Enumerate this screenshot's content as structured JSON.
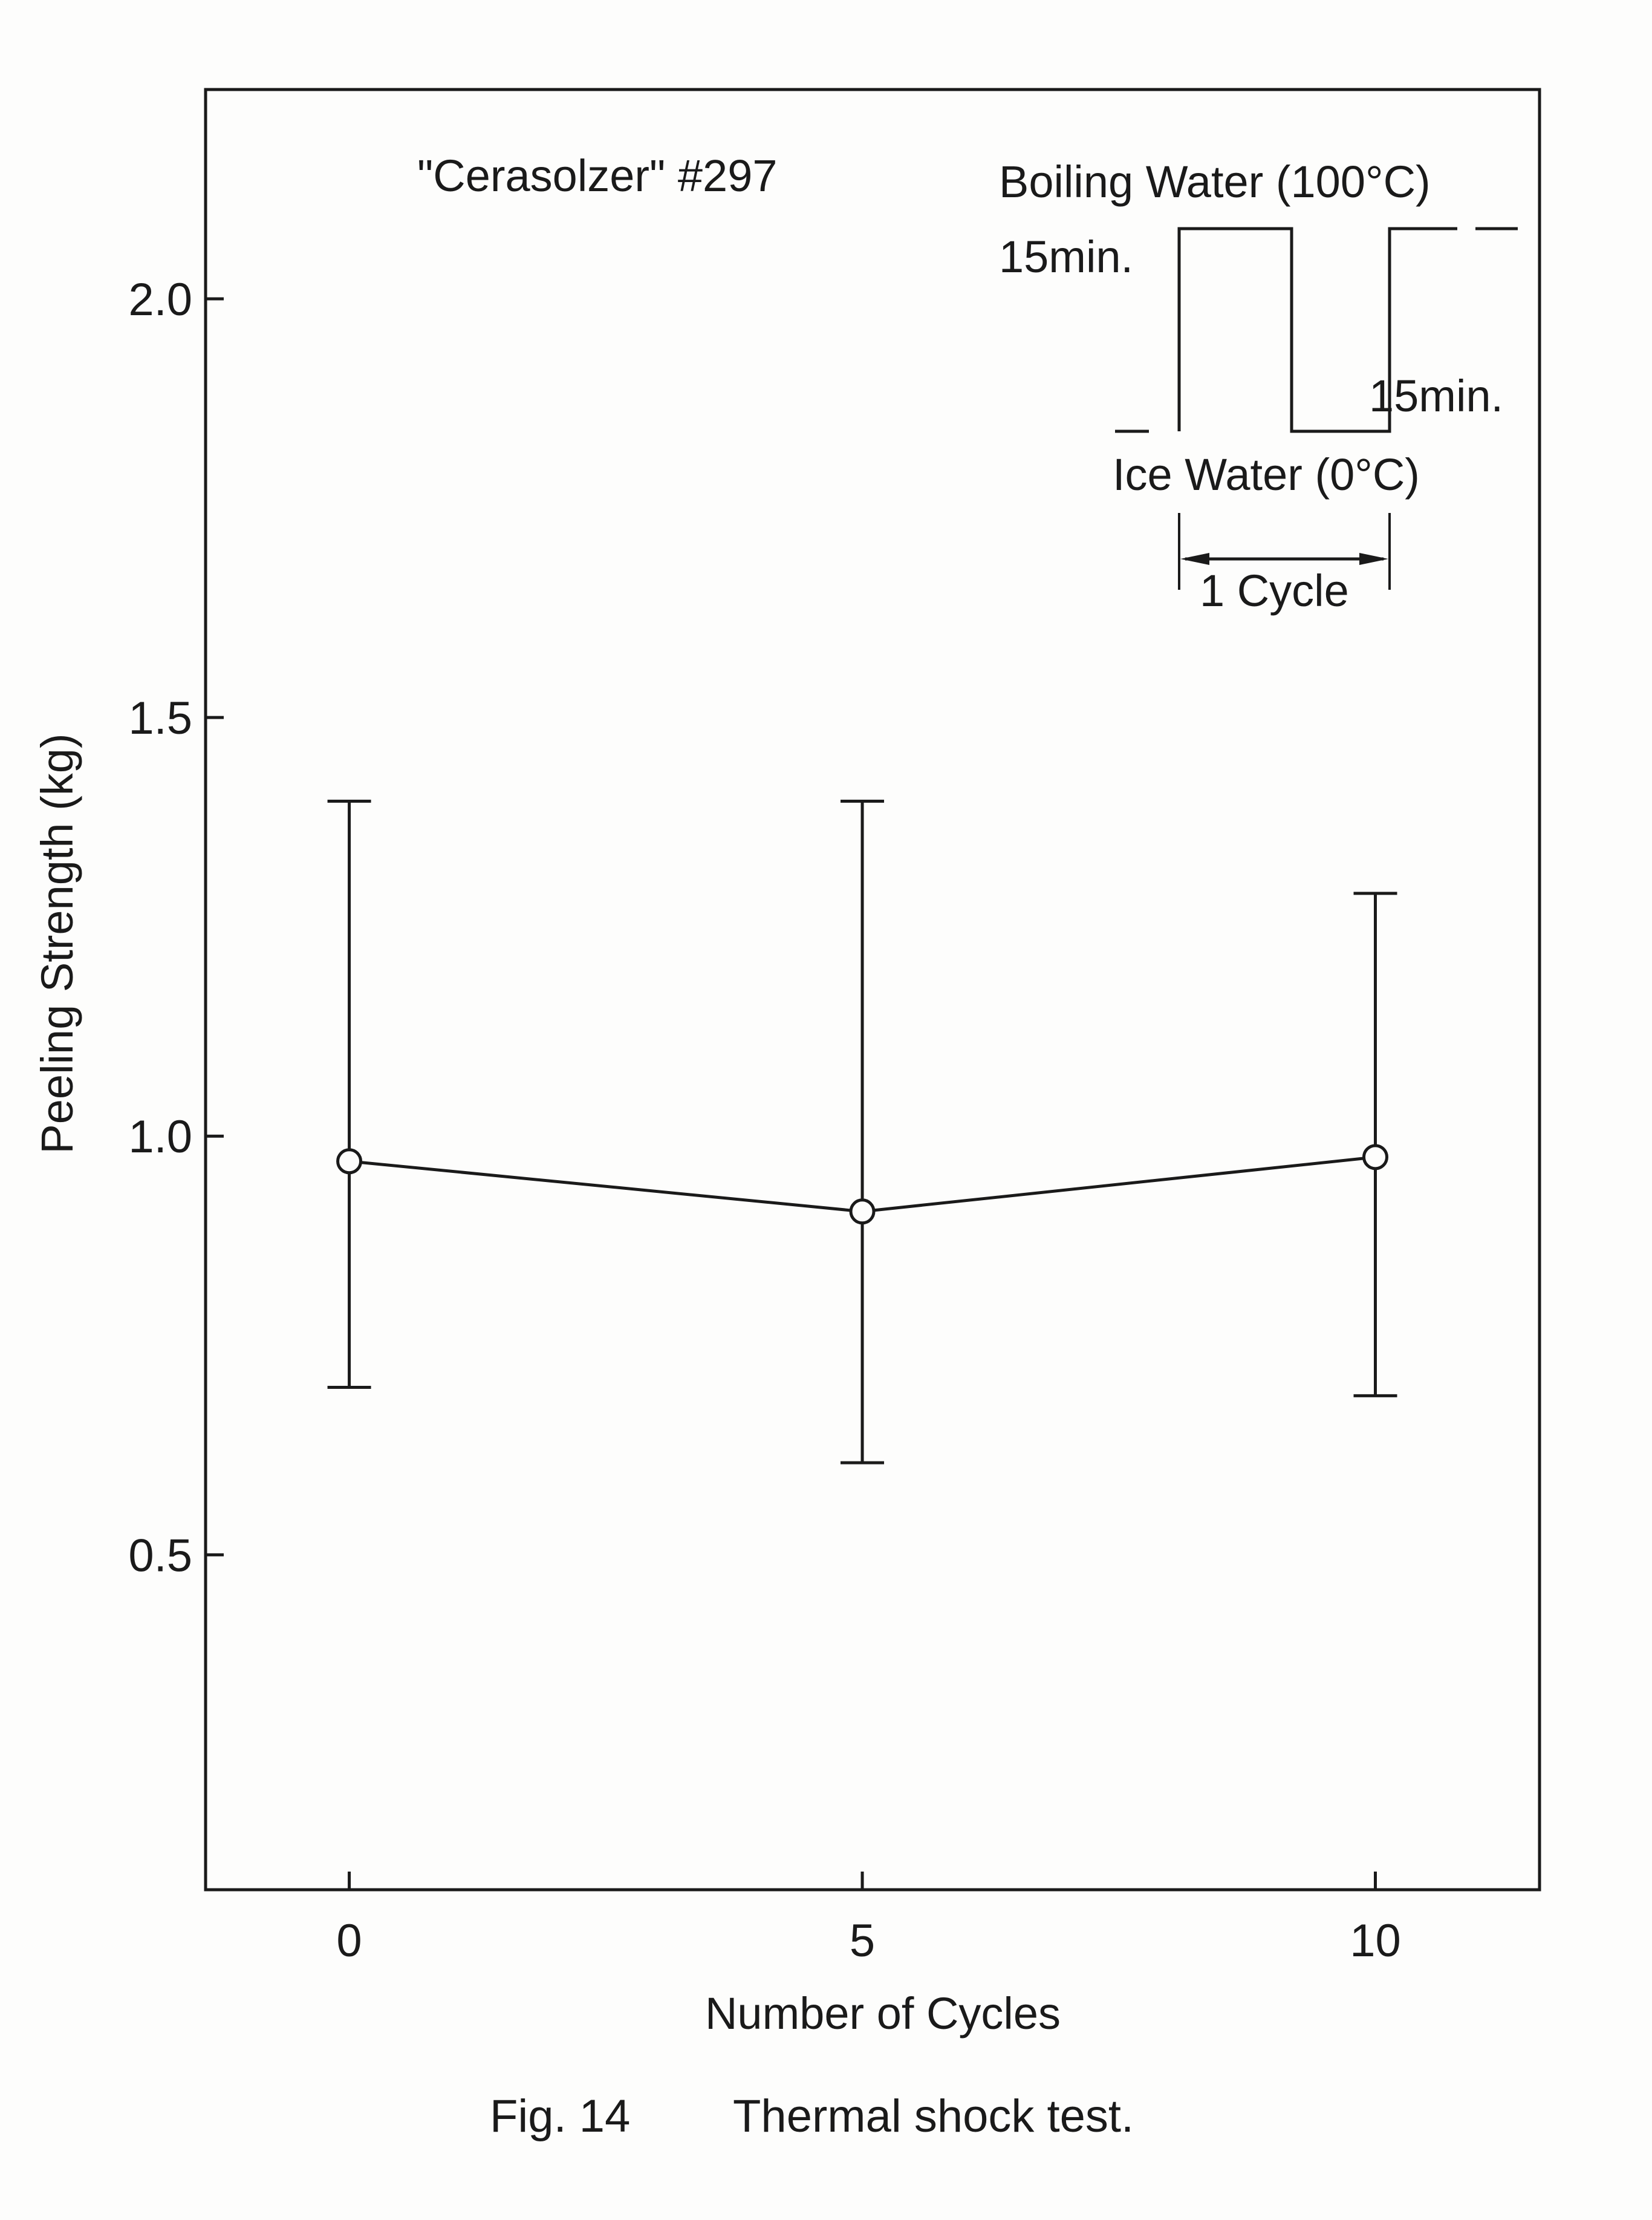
{
  "chart_data": {
    "type": "scatter",
    "title": "",
    "xlabel": "Number of Cycles",
    "ylabel": "Peeling Strength (kg)",
    "xlim": [
      -1.4,
      11.6
    ],
    "ylim": [
      0.1,
      2.25
    ],
    "xticks": [
      0,
      5,
      10
    ],
    "yticks": [
      0.5,
      1.0,
      1.5,
      2.0
    ],
    "xtick_labels": [
      "0",
      "5",
      "10"
    ],
    "ytick_labels": [
      "0.5",
      "1.0",
      "1.5",
      "2.0"
    ],
    "grid": false,
    "series": [
      {
        "x": [
          0,
          5,
          10
        ],
        "y": [
          0.97,
          0.91,
          0.975
        ],
        "y_low": [
          0.7,
          0.61,
          0.69
        ],
        "y_high": [
          1.4,
          1.4,
          1.29
        ],
        "connected": true,
        "marker": "open-circle"
      }
    ],
    "annotations": {
      "sample": "\"Cerasolzer\" #297",
      "boiling": "Boiling Water (100°C)",
      "boiling_time": "15min.",
      "ice": "Ice Water (0°C)",
      "ice_time": "15min.",
      "cycle": "1 Cycle"
    }
  },
  "caption": {
    "number": "Fig. 14",
    "text": "Thermal shock test."
  }
}
